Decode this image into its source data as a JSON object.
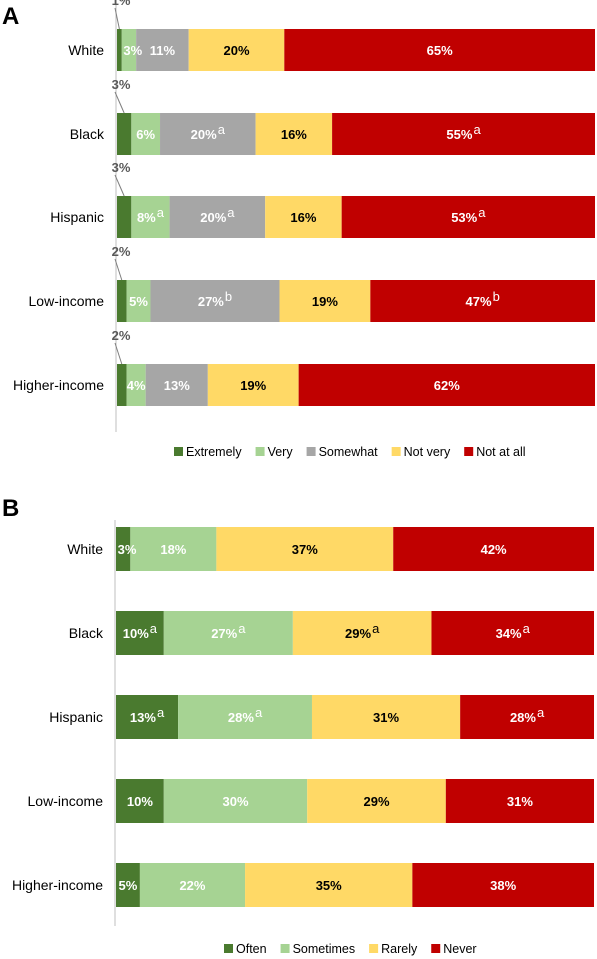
{
  "chart_data": [
    {
      "panel": "A",
      "type": "bar",
      "stacked": true,
      "orientation": "horizontal",
      "categories": [
        "White",
        "Black",
        "Hispanic",
        "Low-income",
        "Higher-income"
      ],
      "colors": [
        "#4a7a2f",
        "#a6d393",
        "#a6a6a6",
        "#ffd966",
        "#c00000"
      ],
      "label_colors": [
        "#ffffff",
        "#ffffff",
        "#ffffff",
        "#000000",
        "#ffffff"
      ],
      "series": [
        {
          "name": "Extremely",
          "values": [
            1,
            3,
            3,
            2,
            2
          ],
          "labels": [
            "1%",
            "3%",
            "3%",
            "2%",
            "2%"
          ],
          "sup": [
            "",
            "",
            "",
            "",
            ""
          ]
        },
        {
          "name": "Very",
          "values": [
            3,
            6,
            8,
            5,
            4
          ],
          "labels": [
            "3%",
            "6%",
            "8%",
            "5%",
            "4%"
          ],
          "sup": [
            "",
            "",
            "a",
            "",
            ""
          ]
        },
        {
          "name": "Somewhat",
          "values": [
            11,
            20,
            20,
            27,
            13
          ],
          "labels": [
            "11%",
            "20%",
            "20%",
            "27%",
            "13%"
          ],
          "sup": [
            "",
            "a",
            "a",
            "b",
            ""
          ]
        },
        {
          "name": "Not very",
          "values": [
            20,
            16,
            16,
            19,
            19
          ],
          "labels": [
            "20%",
            "16%",
            "16%",
            "19%",
            "19%"
          ],
          "sup": [
            "",
            "",
            "",
            "",
            ""
          ]
        },
        {
          "name": "Not at all",
          "values": [
            65,
            55,
            53,
            47,
            62
          ],
          "labels": [
            "65%",
            "55%",
            "53%",
            "47%",
            "62%"
          ],
          "sup": [
            "",
            "a",
            "a",
            "b",
            ""
          ]
        }
      ],
      "xlim": [
        0,
        100
      ],
      "legend_position": "bottom"
    },
    {
      "panel": "B",
      "type": "bar",
      "stacked": true,
      "orientation": "horizontal",
      "categories": [
        "White",
        "Black",
        "Hispanic",
        "Low-income",
        "Higher-income"
      ],
      "colors": [
        "#4a7a2f",
        "#a6d393",
        "#ffd966",
        "#c00000"
      ],
      "label_colors": [
        "#ffffff",
        "#ffffff",
        "#000000",
        "#ffffff"
      ],
      "series": [
        {
          "name": "Often",
          "values": [
            3,
            10,
            13,
            10,
            5
          ],
          "labels": [
            "3%",
            "10%",
            "13%",
            "10%",
            "5%"
          ],
          "sup": [
            "",
            "a",
            "a",
            "",
            ""
          ]
        },
        {
          "name": "Sometimes",
          "values": [
            18,
            27,
            28,
            30,
            22
          ],
          "labels": [
            "18%",
            "27%",
            "28%",
            "30%",
            "22%"
          ],
          "sup": [
            "",
            "a",
            "a",
            "",
            ""
          ]
        },
        {
          "name": "Rarely",
          "values": [
            37,
            29,
            31,
            29,
            35
          ],
          "labels": [
            "37%",
            "29%",
            "31%",
            "29%",
            "35%"
          ],
          "sup": [
            "",
            "a",
            "",
            "",
            ""
          ]
        },
        {
          "name": "Never",
          "values": [
            42,
            34,
            28,
            31,
            38
          ],
          "labels": [
            "42%",
            "34%",
            "28%",
            "31%",
            "38%"
          ],
          "sup": [
            "",
            "a",
            "a",
            "",
            ""
          ]
        }
      ],
      "xlim": [
        0,
        100
      ],
      "legend_position": "bottom"
    }
  ]
}
